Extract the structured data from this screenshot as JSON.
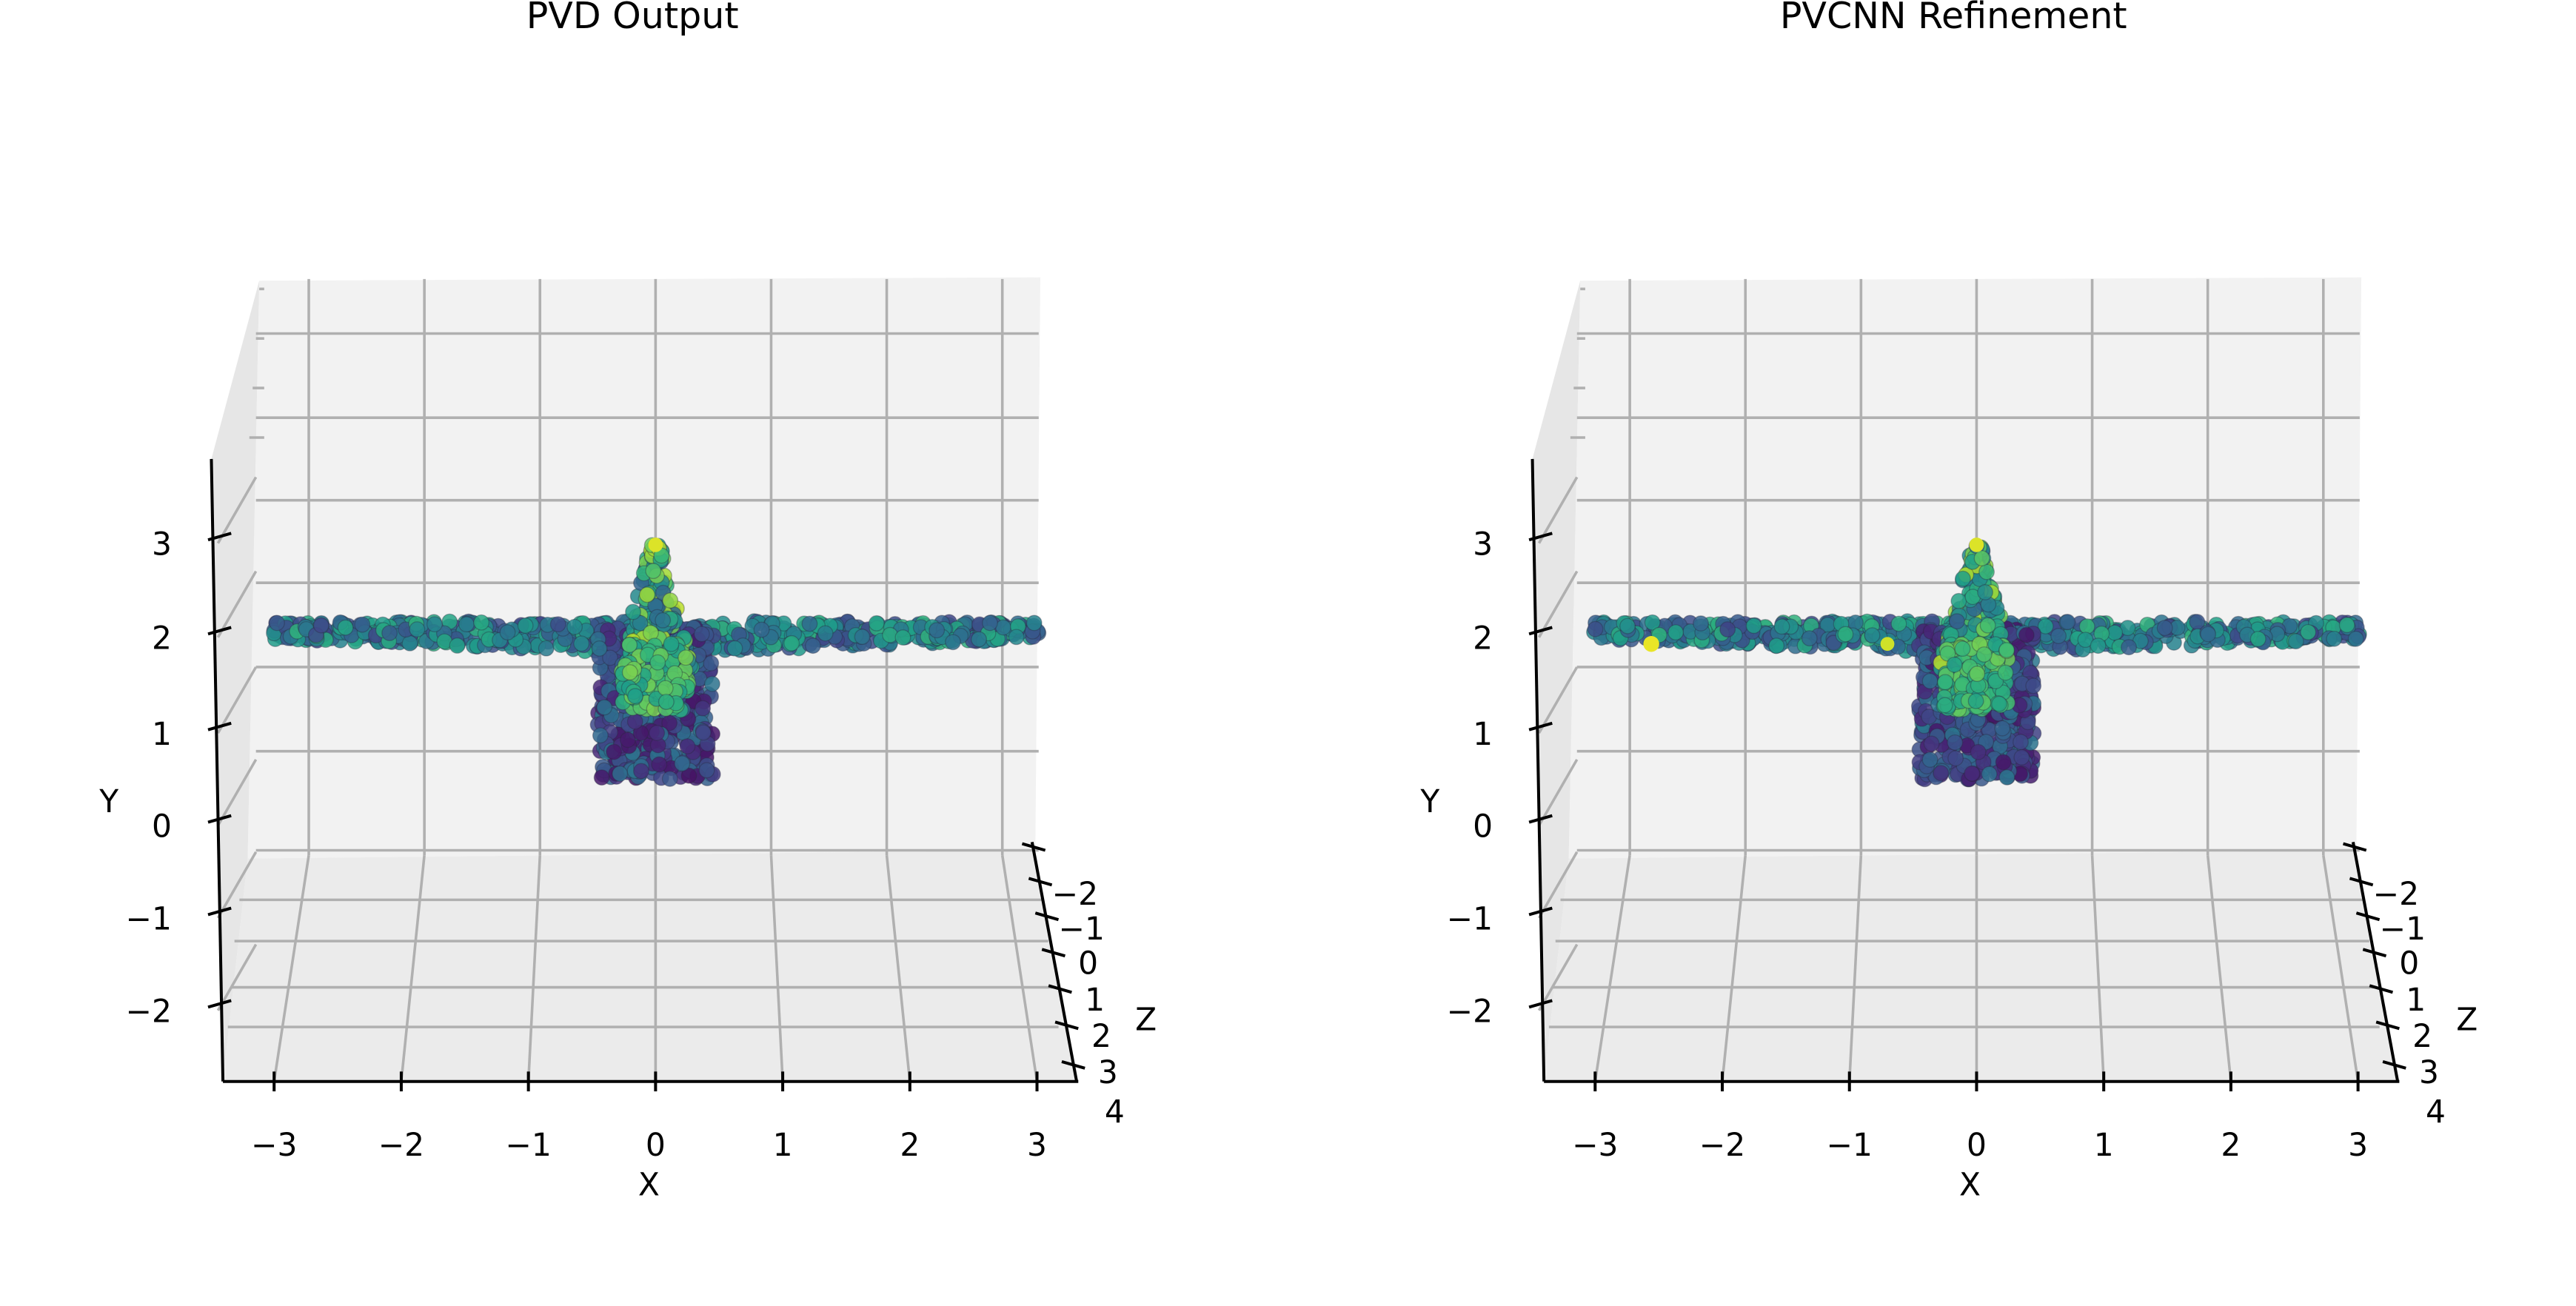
{
  "chart_data": [
    {
      "type": "scatter",
      "title": "PVD Output",
      "xlabel": "X",
      "ylabel": "Y",
      "zlabel": "Z",
      "xticks": [
        "−3",
        "−2",
        "−1",
        "0",
        "1",
        "2",
        "3"
      ],
      "yticks": [
        "−2",
        "−1",
        "0",
        "1",
        "2",
        "3"
      ],
      "zticks": [
        "−2",
        "−1",
        "0",
        "1",
        "2",
        "3",
        "4"
      ],
      "xlim": [
        -3.4,
        3.4
      ],
      "ylim": [
        -2.8,
        3.9
      ],
      "zlim": [
        -2.6,
        4.2
      ],
      "grid": true,
      "colormap": "viridis",
      "shape": "airplane point cloud (front view)",
      "seed": 11
    },
    {
      "type": "scatter",
      "title": "PVCNN Refinement",
      "xlabel": "X",
      "ylabel": "Y",
      "zlabel": "Z",
      "xticks": [
        "−3",
        "−2",
        "−1",
        "0",
        "1",
        "2",
        "3"
      ],
      "yticks": [
        "−2",
        "−1",
        "0",
        "1",
        "2",
        "3"
      ],
      "zticks": [
        "−2",
        "−1",
        "0",
        "1",
        "2",
        "3",
        "4"
      ],
      "xlim": [
        -3.4,
        3.4
      ],
      "ylim": [
        -2.8,
        3.9
      ],
      "zlim": [
        -2.6,
        4.2
      ],
      "grid": true,
      "colormap": "viridis",
      "shape": "airplane point cloud (front view)",
      "seed": 29
    }
  ]
}
